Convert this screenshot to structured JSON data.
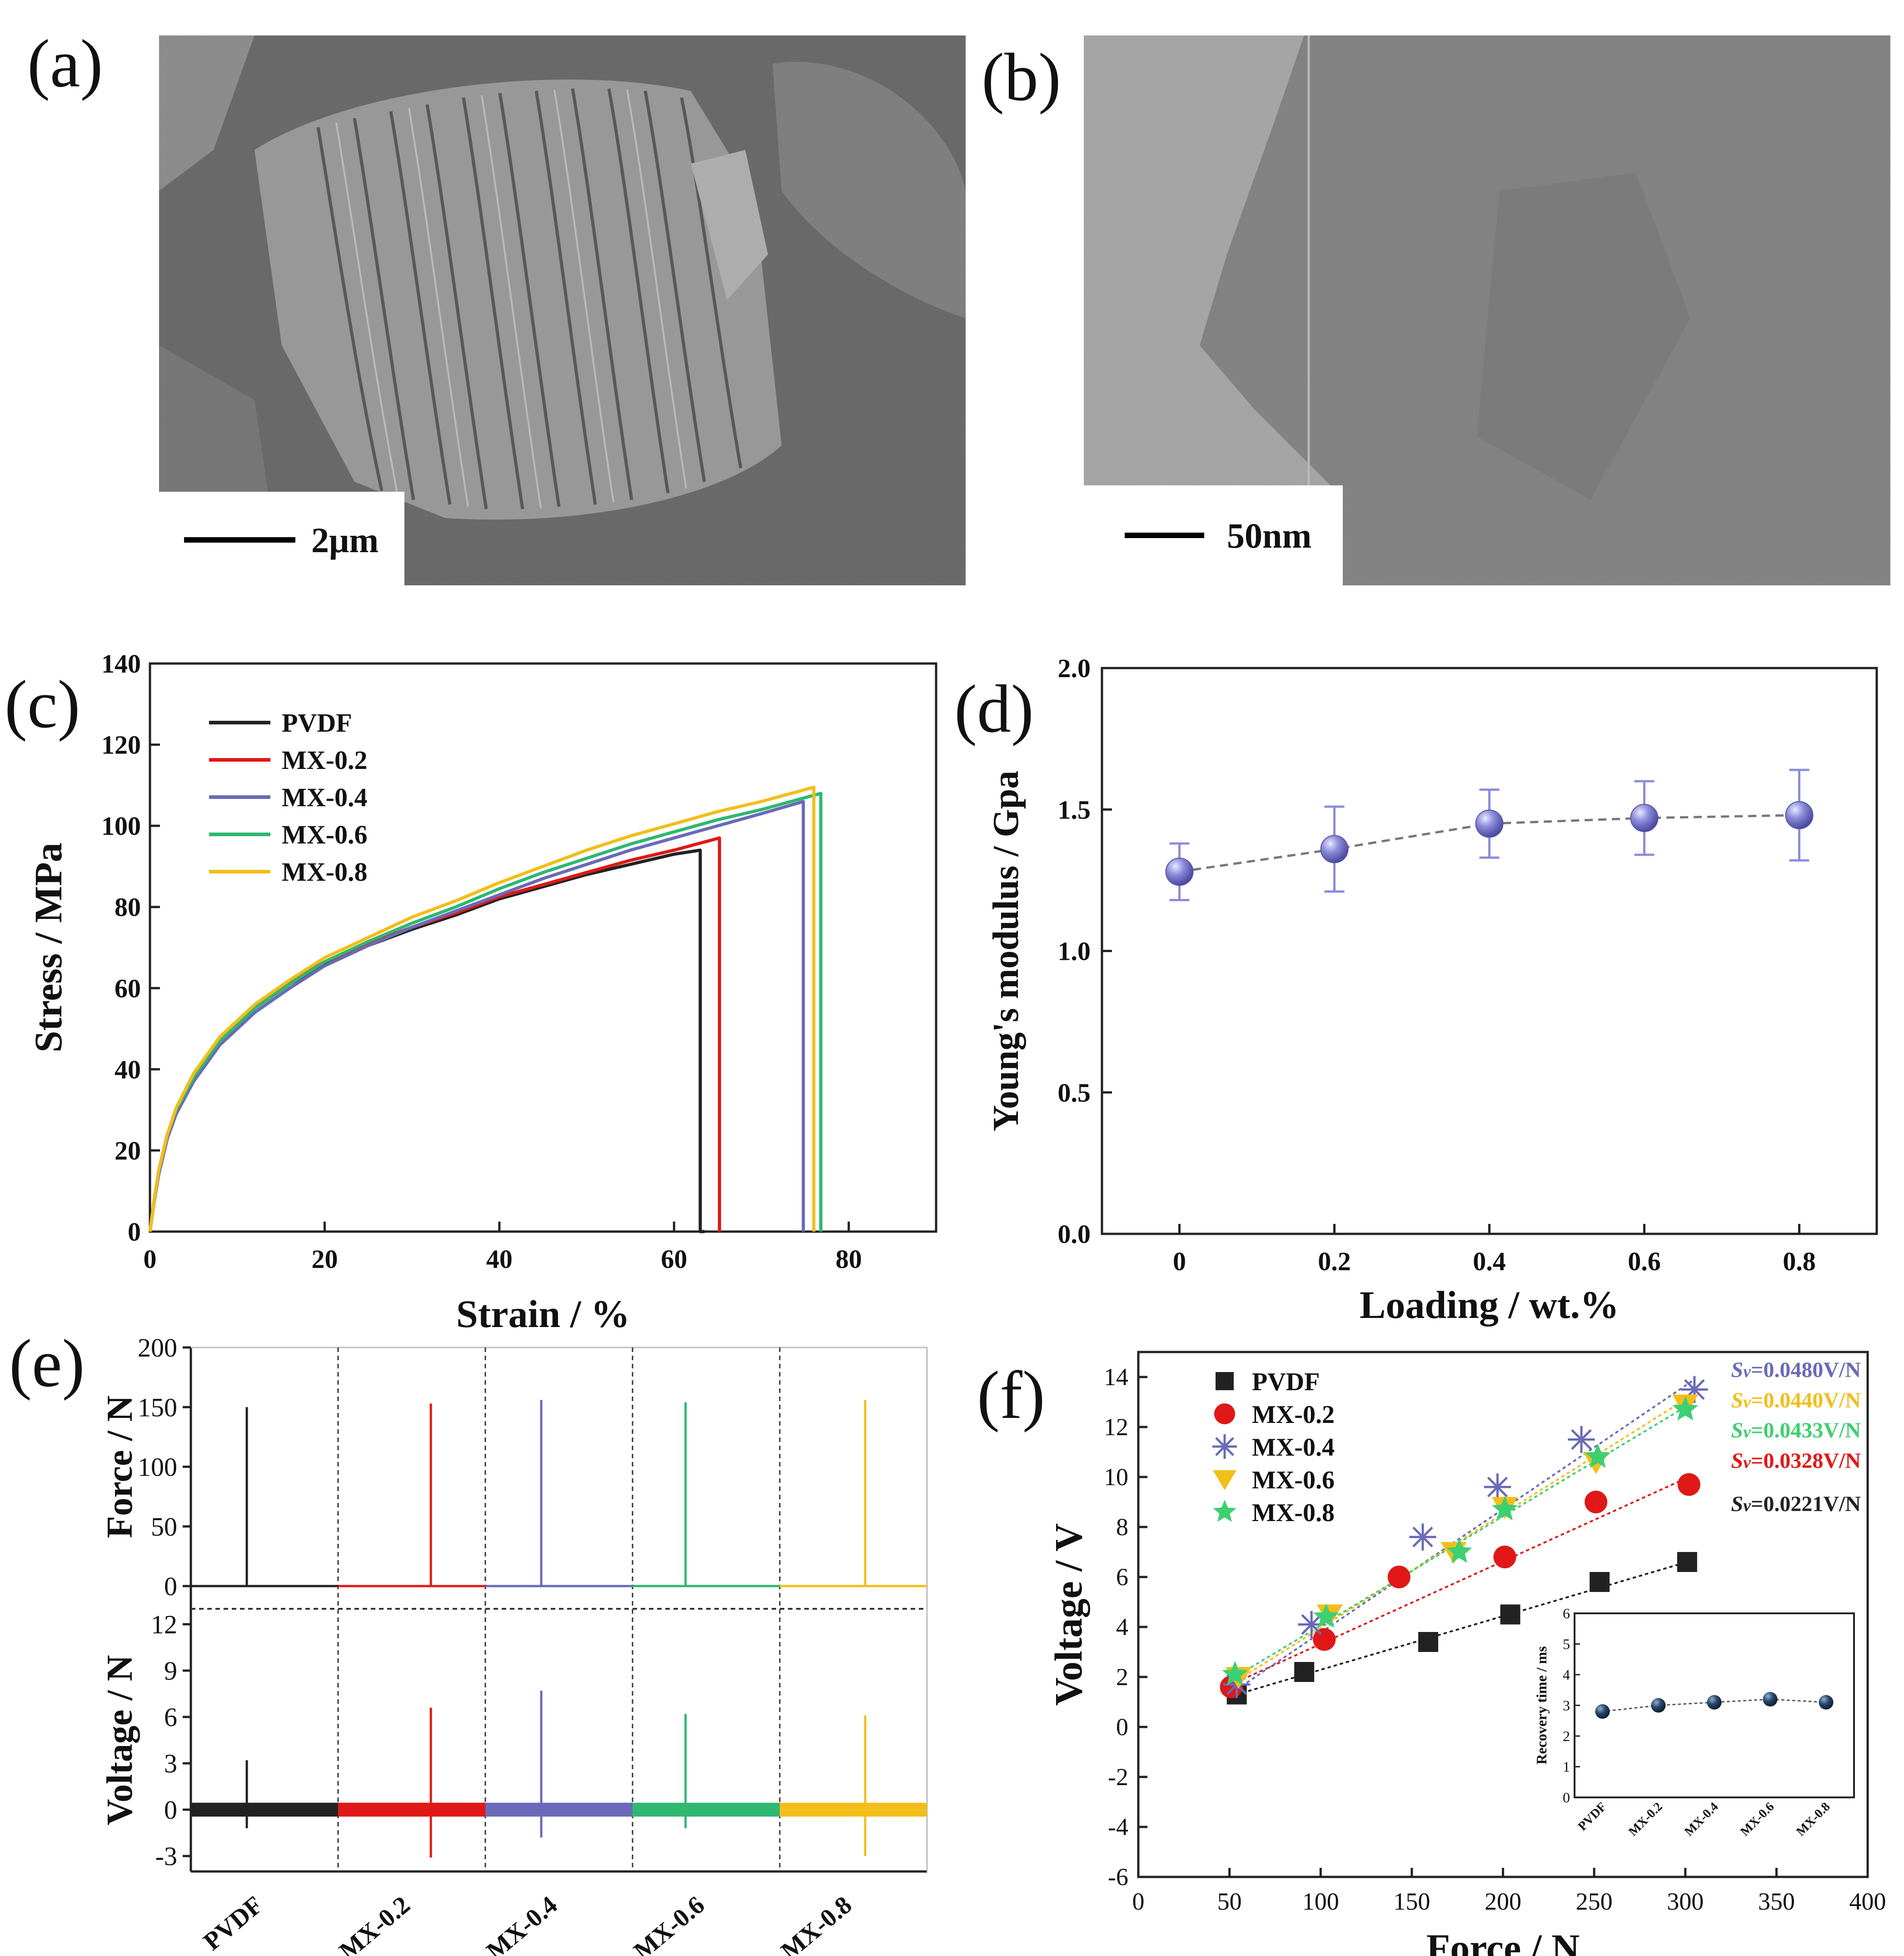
{
  "panels": {
    "a": {
      "label": "(a)",
      "scale_text": "2μm",
      "image_desc": "SEM micrograph"
    },
    "b": {
      "label": "(b)",
      "scale_text": "50nm",
      "image_desc": "TEM micrograph"
    },
    "c": {
      "label": "(c)"
    },
    "d": {
      "label": "(d)"
    },
    "e": {
      "label": "(e)"
    },
    "f": {
      "label": "(f)"
    }
  },
  "colors": {
    "PVDF": "#222222",
    "MX-0.2": "#e01818",
    "MX-0.4": "#6a6ab8",
    "MX-0.6": "#2eb872",
    "MX-0.8": "#f2be1a",
    "f_MX-0.6": "#f2be1a",
    "f_MX-0.8": "#3ecf72",
    "d_marker": "#8c8cdc",
    "inset_marker": "#1f3550"
  },
  "chart_data": [
    {
      "id": "c",
      "type": "line",
      "title": "",
      "xlabel": "Strain / %",
      "ylabel": "Stress / MPa",
      "xlim": [
        0,
        90
      ],
      "ylim": [
        0,
        140
      ],
      "xticks": [
        0,
        20,
        40,
        60,
        80
      ],
      "yticks": [
        0,
        20,
        40,
        60,
        80,
        100,
        120,
        140
      ],
      "legend": "top-left",
      "series": [
        {
          "name": "PVDF",
          "x": [
            0,
            0.5,
            1,
            2,
            3,
            5,
            8,
            12,
            16,
            20,
            25,
            30,
            35,
            40,
            45,
            50,
            55,
            60,
            63,
            63,
            63.5
          ],
          "y": [
            0,
            8,
            15,
            24,
            30,
            38,
            47,
            55,
            61,
            66,
            70.5,
            74.5,
            78,
            82,
            85,
            88,
            90.5,
            93,
            94,
            0,
            0
          ]
        },
        {
          "name": "MX-0.2",
          "x": [
            0,
            0.5,
            1,
            2,
            3,
            5,
            8,
            12,
            16,
            20,
            25,
            30,
            35,
            40,
            45,
            50,
            55,
            60,
            65.2,
            65.2
          ],
          "y": [
            0,
            8,
            15,
            24,
            30,
            38,
            47.5,
            55.5,
            61.5,
            66.5,
            71,
            75,
            78.5,
            82.5,
            85.5,
            88.5,
            91.5,
            94,
            97,
            0
          ]
        },
        {
          "name": "MX-0.4",
          "x": [
            0,
            0.5,
            1,
            2,
            3,
            5,
            8,
            12,
            16,
            20,
            25,
            30,
            35,
            40,
            45,
            50,
            55,
            60,
            65,
            70,
            74.8,
            74.8
          ],
          "y": [
            0,
            7.5,
            14,
            23,
            29,
            37,
            46,
            54,
            60,
            65.5,
            70.5,
            75,
            79,
            83,
            87,
            90.5,
            94,
            97,
            100,
            103,
            106,
            0
          ]
        },
        {
          "name": "MX-0.6",
          "x": [
            0,
            0.5,
            1,
            2,
            3,
            5,
            8,
            12,
            16,
            20,
            25,
            30,
            35,
            40,
            45,
            50,
            55,
            60,
            65,
            70,
            76.8,
            76.8
          ],
          "y": [
            0,
            8,
            15,
            24,
            30,
            38,
            47,
            55,
            61,
            66.5,
            71.5,
            76,
            80,
            84.5,
            88.5,
            92,
            95.5,
            98.5,
            101.5,
            104,
            108,
            0
          ]
        },
        {
          "name": "MX-0.8",
          "x": [
            0,
            0.5,
            1,
            2,
            3,
            5,
            8,
            12,
            16,
            20,
            25,
            30,
            35,
            40,
            45,
            50,
            55,
            60,
            65,
            70,
            76,
            76
          ],
          "y": [
            0,
            8,
            15,
            24,
            30.5,
            39,
            48,
            56,
            62,
            67.5,
            72.5,
            77.5,
            81.5,
            86,
            90,
            94,
            97.5,
            100.5,
            103.5,
            106,
            109.5,
            0
          ]
        }
      ]
    },
    {
      "id": "d",
      "type": "scatter",
      "title": "",
      "xlabel": "Loading / wt.%",
      "ylabel": "Young's modulus / Gpa",
      "xlim": [
        -0.1,
        0.9
      ],
      "ylim": [
        0,
        2.0
      ],
      "xticks": [
        0,
        0.2,
        0.4,
        0.6,
        0.8
      ],
      "xticklabels": [
        "0",
        "0.2",
        "0.4",
        "0.6",
        "0.8"
      ],
      "yticks": [
        0,
        0.5,
        1.0,
        1.5,
        2.0
      ],
      "yticklabels": [
        "0.0",
        "0.5",
        "1.0",
        "1.5",
        "2.0"
      ],
      "x": [
        0,
        0.2,
        0.4,
        0.6,
        0.8
      ],
      "y": [
        1.28,
        1.36,
        1.45,
        1.47,
        1.48
      ],
      "err": [
        0.1,
        0.15,
        0.12,
        0.13,
        0.16
      ]
    },
    {
      "id": "e",
      "type": "line",
      "title": "",
      "xlabel": "",
      "categories": [
        "PVDF",
        "MX-0.2",
        "MX-0.4",
        "MX-0.6",
        "MX-0.8"
      ],
      "top": {
        "ylabel": "Force / N",
        "ylim": [
          0,
          200
        ],
        "yticks": [
          0,
          50,
          100,
          150,
          200
        ],
        "peaks": [
          150,
          153,
          156,
          154,
          156
        ]
      },
      "bottom": {
        "ylabel": "Voltage / N",
        "ylim": [
          -4,
          13
        ],
        "yticks": [
          -3,
          0,
          3,
          6,
          9,
          12
        ],
        "peaks_max": [
          3.2,
          6.6,
          7.7,
          6.2,
          6.1
        ],
        "peaks_min": [
          -1.2,
          -3.1,
          -1.8,
          -1.2,
          -3.0
        ]
      }
    },
    {
      "id": "f",
      "type": "scatter",
      "title": "",
      "xlabel": "Force / N",
      "ylabel": "Voltage / V",
      "xlim": [
        0,
        400
      ],
      "ylim": [
        -6,
        15
      ],
      "xticks": [
        0,
        50,
        100,
        150,
        200,
        250,
        300,
        350,
        400
      ],
      "yticks": [
        -6,
        -4,
        -2,
        0,
        2,
        4,
        6,
        8,
        10,
        12,
        14
      ],
      "legend": "top-left",
      "series": [
        {
          "name": "PVDF",
          "marker": "square",
          "x": [
            54,
            91,
            159,
            204,
            253,
            301
          ],
          "y": [
            1.3,
            2.2,
            3.4,
            4.5,
            5.8,
            6.6
          ],
          "fit": [
            [
              54,
              1.3
            ],
            [
              301,
              6.6
            ]
          ]
        },
        {
          "name": "MX-0.2",
          "marker": "circle",
          "x": [
            51,
            102,
            143,
            201,
            251,
            302
          ],
          "y": [
            1.6,
            3.5,
            6.0,
            6.8,
            9.0,
            9.7
          ],
          "fit": [
            [
              51,
              1.7
            ],
            [
              302,
              10.0
            ]
          ]
        },
        {
          "name": "MX-0.4",
          "marker": "asterisk",
          "x": [
            54,
            95,
            156,
            197,
            243,
            305
          ],
          "y": [
            1.7,
            4.1,
            7.6,
            9.6,
            11.5,
            13.5
          ],
          "fit": [
            [
              54,
              1.5
            ],
            [
              305,
              13.9
            ]
          ]
        },
        {
          "name": "MX-0.6",
          "marker": "triangle-down",
          "x": [
            55,
            105,
            173,
            201,
            251,
            300
          ],
          "y": [
            2.0,
            4.5,
            7.0,
            8.8,
            10.6,
            12.9
          ],
          "fit": [
            [
              55,
              1.9
            ],
            [
              300,
              13.1
            ]
          ]
        },
        {
          "name": "MX-0.8",
          "marker": "star",
          "x": [
            53,
            103,
            176,
            201,
            252,
            300
          ],
          "y": [
            2.1,
            4.4,
            7.0,
            8.7,
            10.8,
            12.7
          ],
          "fit": [
            [
              53,
              2.0
            ],
            [
              300,
              12.8
            ]
          ]
        }
      ],
      "annotations": [
        {
          "series": "MX-0.4",
          "prefix": "S",
          "sub": "v",
          "text": "=0.0480V/N"
        },
        {
          "series": "MX-0.6",
          "prefix": "S",
          "sub": "v",
          "text": "=0.0440V/N"
        },
        {
          "series": "MX-0.8",
          "prefix": "S",
          "sub": "v",
          "text": "=0.0433V/N"
        },
        {
          "series": "MX-0.2",
          "prefix": "S",
          "sub": "v",
          "text": "=0.0328V/N"
        },
        {
          "series": "PVDF",
          "prefix": "S",
          "sub": "v",
          "text": "=0.0221V/N"
        }
      ],
      "inset": {
        "type": "scatter",
        "ylabel": "Recovery time / ms",
        "categories": [
          "PVDF",
          "MX-0.2",
          "MX-0.4",
          "MX-0.6",
          "MX-0.8"
        ],
        "values": [
          2.8,
          3.0,
          3.1,
          3.2,
          3.1
        ],
        "ylim": [
          0,
          6
        ],
        "yticks": [
          0,
          1,
          2,
          3,
          4,
          5,
          6
        ]
      }
    }
  ]
}
